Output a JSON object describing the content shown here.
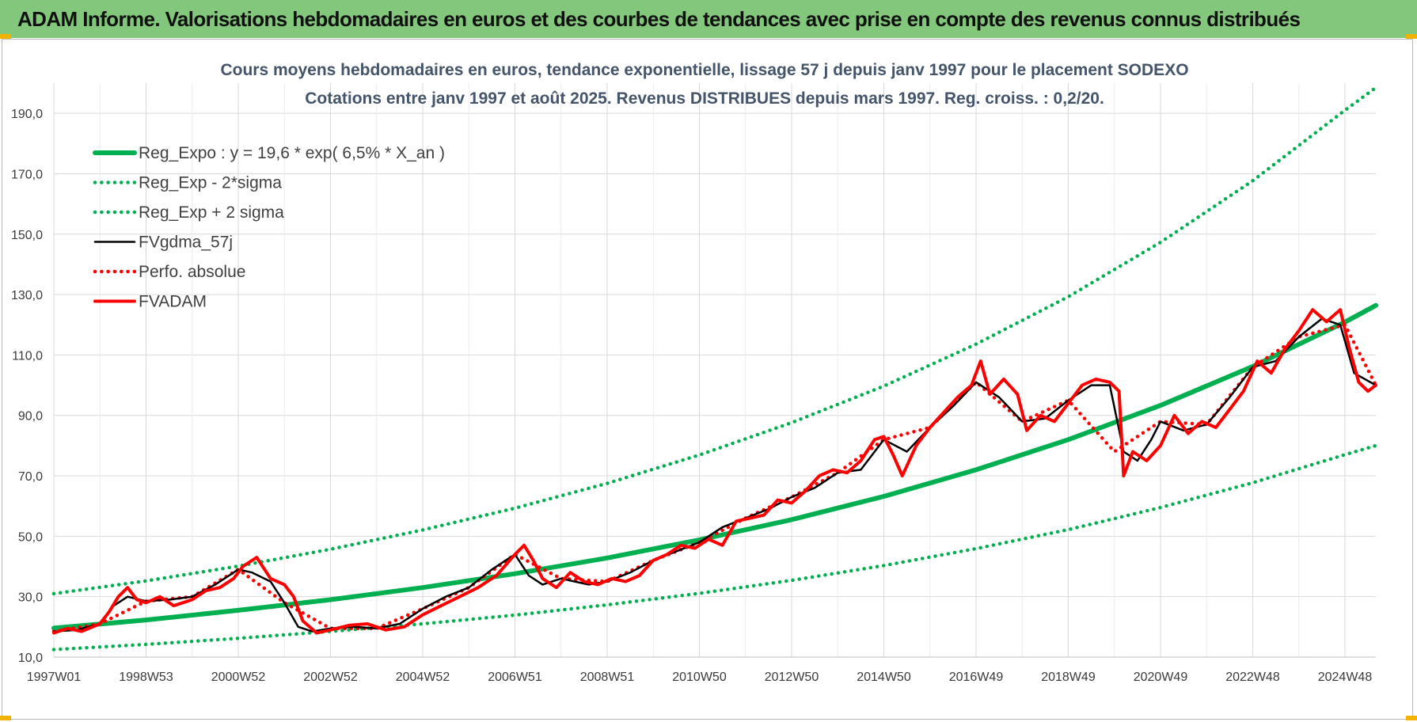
{
  "banner": {
    "title": "ADAM Informe. Valorisations hebdomadaires en euros et des courbes de tendances avec prise en compte des revenus connus distribués"
  },
  "chart_data": {
    "type": "line",
    "title": "Cours moyens hebdomadaires en euros, tendance exponentielle, lissage 57 j depuis janv 1997 pour le placement SODEXO",
    "subtitle": "Cotations entre janv 1997 et août 2025. Revenus DISTRIBUES depuis mars 1997. Reg. croiss. : 0,2/20.",
    "xlabel": "",
    "ylabel": "",
    "x_ticks": [
      "1997W01",
      "1998W53",
      "2000W52",
      "2002W52",
      "2004W52",
      "2006W51",
      "2008W51",
      "2010W50",
      "2012W50",
      "2014W50",
      "2016W49",
      "2018W49",
      "2020W49",
      "2022W48",
      "2024W48"
    ],
    "x_tick_years": [
      1997.0,
      1999.0,
      2001.0,
      2003.0,
      2005.0,
      2007.0,
      2009.0,
      2011.0,
      2013.0,
      2015.0,
      2017.0,
      2019.0,
      2021.0,
      2023.0,
      2025.0
    ],
    "xlim": [
      1997.0,
      2025.67
    ],
    "ylim": [
      10,
      200
    ],
    "y_ticks": [
      10,
      30,
      50,
      70,
      90,
      110,
      130,
      150,
      170,
      190
    ],
    "y_tick_labels": [
      "10,0",
      "30,0",
      "50,0",
      "70,0",
      "90,0",
      "110,0",
      "130,0",
      "150,0",
      "170,0",
      "190,0"
    ],
    "grid": true,
    "legend_position": "top-left",
    "series": [
      {
        "name": "Reg_Expo : y = 19,6 * exp( 6,5% *  X_an )",
        "color": "#00b050",
        "style": "solid-thick",
        "x": [
          1997.0,
          1999.0,
          2001.0,
          2003.0,
          2005.0,
          2007.0,
          2009.0,
          2011.0,
          2013.0,
          2015.0,
          2017.0,
          2019.0,
          2021.0,
          2023.0,
          2025.0,
          2025.67
        ],
        "y": [
          19.6,
          22.3,
          25.5,
          29.0,
          33.0,
          37.6,
          42.8,
          48.8,
          55.5,
          63.2,
          72.0,
          82.0,
          93.3,
          106.2,
          120.9,
          126.4
        ]
      },
      {
        "name": "Reg_Exp - 2*sigma",
        "color": "#00b050",
        "style": "dotted",
        "x": [
          1997.0,
          1999.0,
          2001.0,
          2003.0,
          2005.0,
          2007.0,
          2009.0,
          2011.0,
          2013.0,
          2015.0,
          2017.0,
          2019.0,
          2021.0,
          2023.0,
          2025.0,
          2025.67
        ],
        "y": [
          12.5,
          14.2,
          16.2,
          18.5,
          21.0,
          23.9,
          27.3,
          31.1,
          35.4,
          40.3,
          45.9,
          52.2,
          59.5,
          67.7,
          77.0,
          80.0
        ]
      },
      {
        "name": "Reg_Exp + 2 sigma",
        "color": "#00b050",
        "style": "dotted",
        "x": [
          1997.0,
          1999.0,
          2001.0,
          2003.0,
          2005.0,
          2007.0,
          2009.0,
          2011.0,
          2013.0,
          2015.0,
          2017.0,
          2019.0,
          2021.0,
          2023.0,
          2025.0,
          2025.67
        ],
        "y": [
          31.0,
          35.2,
          40.1,
          45.7,
          52.1,
          59.3,
          67.5,
          76.9,
          87.6,
          99.7,
          113.6,
          129.3,
          147.3,
          167.7,
          191.0,
          198.5
        ]
      },
      {
        "name": "FVgdma_57j",
        "color": "#000000",
        "style": "solid",
        "x": [
          1997.0,
          1997.5,
          1998.0,
          1998.3,
          1998.6,
          1999.0,
          1999.5,
          2000.0,
          2000.5,
          2001.0,
          2001.3,
          2001.7,
          2002.0,
          2002.3,
          2002.6,
          2003.0,
          2003.5,
          2004.0,
          2004.5,
          2005.0,
          2005.5,
          2006.0,
          2006.5,
          2007.0,
          2007.3,
          2007.6,
          2008.0,
          2008.3,
          2008.6,
          2009.0,
          2009.5,
          2010.0,
          2010.5,
          2011.0,
          2011.5,
          2012.0,
          2012.5,
          2013.0,
          2013.5,
          2014.0,
          2014.5,
          2015.0,
          2015.5,
          2016.0,
          2016.5,
          2017.0,
          2017.5,
          2018.0,
          2018.5,
          2019.0,
          2019.5,
          2019.9,
          2020.2,
          2020.5,
          2020.8,
          2021.0,
          2021.5,
          2022.0,
          2022.5,
          2023.0,
          2023.5,
          2024.0,
          2024.5,
          2024.9,
          2025.2,
          2025.67
        ],
        "y": [
          18.5,
          19.0,
          21.0,
          27.0,
          30.0,
          28.5,
          29.0,
          30.0,
          34.0,
          39.0,
          38.0,
          35.0,
          28.0,
          20.0,
          18.5,
          19.5,
          20.0,
          19.5,
          21.0,
          26.0,
          30.0,
          33.0,
          39.0,
          44.0,
          37.0,
          34.0,
          36.0,
          35.0,
          34.0,
          35.0,
          38.0,
          42.0,
          45.0,
          48.0,
          53.0,
          56.0,
          59.0,
          63.0,
          66.0,
          71.0,
          72.0,
          82.0,
          78.0,
          86.0,
          93.0,
          101.0,
          96.0,
          88.0,
          89.0,
          95.0,
          100.0,
          100.0,
          78.0,
          75.0,
          82.0,
          88.0,
          85.0,
          87.0,
          96.0,
          106.0,
          108.0,
          116.0,
          122.0,
          120.0,
          104.0,
          100.0
        ]
      },
      {
        "name": "Perfo. absolue",
        "color": "#ff0000",
        "style": "dotted",
        "x": [
          1997.0,
          1998.0,
          1999.0,
          2000.0,
          2001.0,
          2002.0,
          2003.0,
          2004.0,
          2005.0,
          2006.0,
          2007.0,
          2008.0,
          2009.0,
          2010.0,
          2011.0,
          2012.0,
          2013.0,
          2014.0,
          2015.0,
          2016.0,
          2017.0,
          2018.0,
          2019.0,
          2020.0,
          2021.0,
          2022.0,
          2023.0,
          2024.0,
          2025.0,
          2025.67
        ],
        "y": [
          18.5,
          21.0,
          28.5,
          30.0,
          39.0,
          28.0,
          19.5,
          19.5,
          26.0,
          33.0,
          44.0,
          36.0,
          35.0,
          42.0,
          48.0,
          56.0,
          63.0,
          71.0,
          82.0,
          86.0,
          101.0,
          88.0,
          95.0,
          78.0,
          88.0,
          87.0,
          106.0,
          116.0,
          120.0,
          100.0
        ]
      },
      {
        "name": "FVADAM",
        "color": "#ff0000",
        "style": "solid-thick",
        "x": [
          1997.0,
          1997.3,
          1997.6,
          1998.0,
          1998.2,
          1998.4,
          1998.6,
          1998.8,
          1999.0,
          1999.3,
          1999.6,
          2000.0,
          2000.3,
          2000.6,
          2000.9,
          2001.1,
          2001.4,
          2001.7,
          2002.0,
          2002.2,
          2002.4,
          2002.7,
          2003.0,
          2003.4,
          2003.8,
          2004.2,
          2004.6,
          2005.0,
          2005.4,
          2005.8,
          2006.2,
          2006.6,
          2007.0,
          2007.2,
          2007.4,
          2007.6,
          2007.9,
          2008.2,
          2008.5,
          2008.8,
          2009.1,
          2009.4,
          2009.7,
          2010.0,
          2010.3,
          2010.6,
          2010.9,
          2011.2,
          2011.5,
          2011.8,
          2012.1,
          2012.4,
          2012.7,
          2013.0,
          2013.3,
          2013.6,
          2013.9,
          2014.2,
          2014.5,
          2014.8,
          2015.0,
          2015.2,
          2015.4,
          2015.7,
          2016.0,
          2016.3,
          2016.6,
          2016.9,
          2017.1,
          2017.3,
          2017.6,
          2017.9,
          2018.1,
          2018.4,
          2018.7,
          2019.0,
          2019.3,
          2019.6,
          2019.9,
          2020.1,
          2020.2,
          2020.4,
          2020.7,
          2021.0,
          2021.3,
          2021.6,
          2021.9,
          2022.2,
          2022.5,
          2022.8,
          2023.1,
          2023.4,
          2023.7,
          2024.0,
          2024.3,
          2024.6,
          2024.9,
          2025.1,
          2025.3,
          2025.5,
          2025.67
        ],
        "y": [
          18.0,
          19.5,
          18.5,
          21.0,
          25.0,
          30.0,
          33.0,
          29.0,
          28.0,
          30.0,
          27.0,
          29.0,
          32.0,
          33.0,
          36.0,
          40.0,
          43.0,
          36.0,
          34.0,
          30.0,
          22.0,
          18.0,
          19.0,
          20.5,
          21.0,
          19.0,
          20.0,
          24.0,
          27.0,
          30.0,
          33.0,
          37.0,
          44.0,
          47.0,
          42.0,
          36.0,
          33.0,
          38.0,
          35.0,
          34.0,
          36.0,
          35.0,
          37.0,
          42.0,
          44.0,
          47.0,
          46.0,
          49.0,
          47.0,
          55.0,
          56.0,
          57.0,
          62.0,
          61.0,
          65.0,
          70.0,
          72.0,
          71.0,
          75.0,
          82.0,
          83.0,
          77.0,
          70.0,
          80.0,
          86.0,
          91.0,
          96.0,
          100.0,
          108.0,
          97.0,
          102.0,
          97.0,
          85.0,
          90.0,
          88.0,
          94.0,
          100.0,
          102.0,
          101.0,
          98.0,
          70.0,
          78.0,
          75.0,
          80.0,
          90.0,
          84.0,
          88.0,
          86.0,
          92.0,
          98.0,
          108.0,
          104.0,
          112.0,
          118.0,
          125.0,
          121.0,
          125.0,
          112.0,
          101.0,
          98.0,
          100.0
        ]
      }
    ]
  }
}
